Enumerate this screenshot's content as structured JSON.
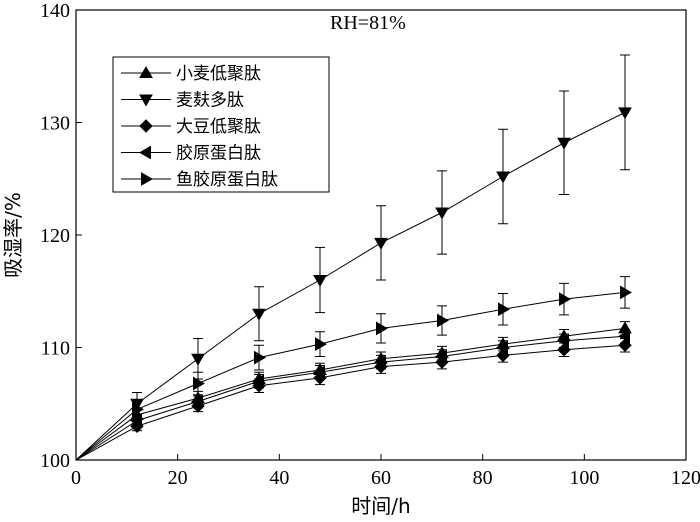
{
  "chart_data": {
    "type": "line",
    "title": "",
    "annotation": "RH=81%",
    "xlabel": "时间/h",
    "ylabel": "吸湿率/%",
    "xlim": [
      0,
      120
    ],
    "ylim": [
      100,
      140
    ],
    "xticks": [
      0,
      20,
      40,
      60,
      80,
      100,
      120
    ],
    "yticks": [
      100,
      110,
      120,
      130,
      140
    ],
    "grid": false,
    "legend_position": "top-left",
    "x": [
      0,
      12,
      24,
      36,
      48,
      60,
      72,
      84,
      96,
      108
    ],
    "series": [
      {
        "name": "小麦低聚肽",
        "marker": "triangle-up",
        "values": [
          100,
          104.0,
          105.5,
          107.2,
          108.0,
          109.0,
          109.5,
          110.3,
          111.0,
          111.7
        ],
        "errors": [
          0,
          0.6,
          0.6,
          0.6,
          0.6,
          0.6,
          0.6,
          0.6,
          0.6,
          0.6
        ]
      },
      {
        "name": "麦麸多肽",
        "marker": "triangle-down",
        "values": [
          100,
          105.0,
          109.0,
          113.0,
          116.0,
          119.3,
          122.0,
          125.2,
          128.2,
          130.9
        ],
        "errors": [
          0,
          1.0,
          1.8,
          2.4,
          2.9,
          3.3,
          3.7,
          4.2,
          4.6,
          5.1
        ]
      },
      {
        "name": "大豆低聚肽",
        "marker": "diamond",
        "values": [
          100,
          103.0,
          104.8,
          106.6,
          107.3,
          108.3,
          108.7,
          109.3,
          109.8,
          110.2
        ],
        "errors": [
          0,
          0.4,
          0.5,
          0.6,
          0.6,
          0.6,
          0.6,
          0.6,
          0.6,
          0.6
        ]
      },
      {
        "name": "胶原蛋白肽",
        "marker": "triangle-left",
        "values": [
          100,
          103.5,
          105.2,
          107.0,
          107.8,
          108.7,
          109.2,
          110.0,
          110.6,
          111.0
        ],
        "errors": [
          0,
          0.5,
          0.5,
          0.6,
          0.6,
          0.6,
          0.6,
          0.6,
          0.6,
          0.6
        ]
      },
      {
        "name": "鱼胶原蛋白肽",
        "marker": "triangle-right",
        "values": [
          100,
          104.5,
          106.8,
          109.1,
          110.3,
          111.7,
          112.4,
          113.4,
          114.3,
          114.9
        ],
        "errors": [
          0,
          0.8,
          1.0,
          1.1,
          1.1,
          1.3,
          1.3,
          1.4,
          1.4,
          1.4
        ]
      }
    ]
  }
}
